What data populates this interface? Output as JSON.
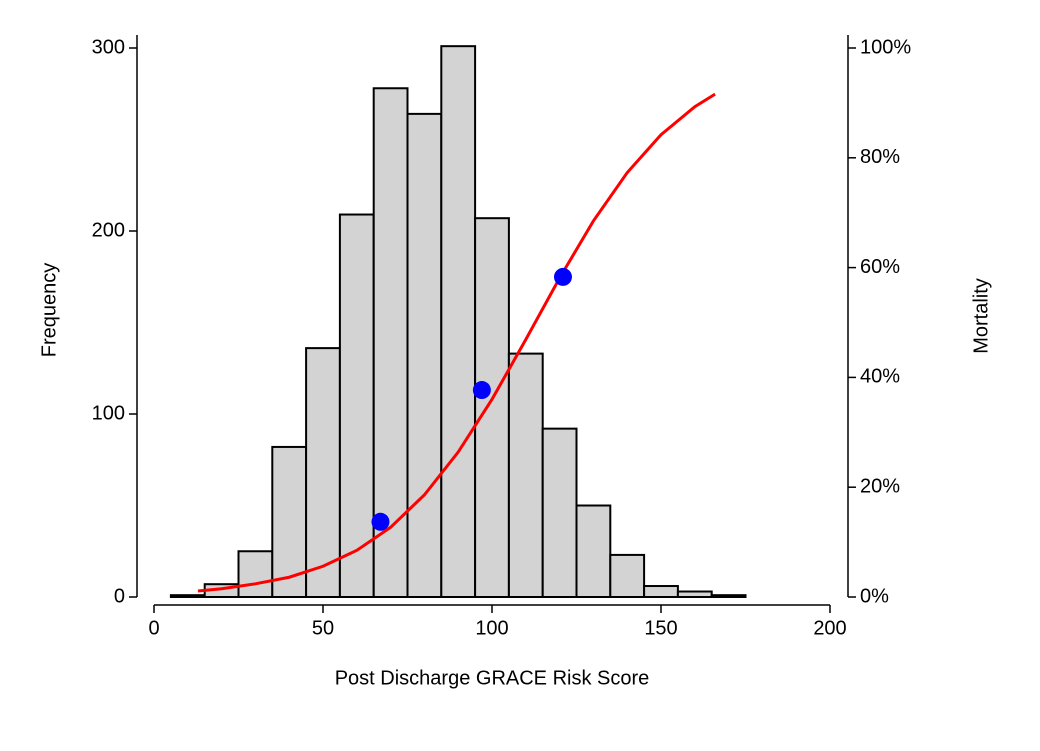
{
  "chart_data": {
    "type": "histogram",
    "bins": [
      5,
      15,
      25,
      35,
      45,
      55,
      65,
      75,
      85,
      95,
      105,
      115,
      125,
      135,
      145,
      155,
      165,
      175
    ],
    "values": [
      1,
      7,
      25,
      82,
      136,
      209,
      278,
      264,
      301,
      207,
      133,
      92,
      50,
      23,
      6,
      3,
      1
    ],
    "color": "#d3d3d3",
    "x_label": "Post Discharge GRACE Risk Score",
    "y_label": "Frequency",
    "y2_label": "Mortality",
    "xlim": [
      0,
      200
    ],
    "xticks": [
      0,
      50,
      100,
      150,
      200
    ],
    "ylim": [
      0,
      300
    ],
    "yticks": [
      0,
      100,
      200,
      300
    ],
    "y2lim": [
      0,
      100
    ],
    "y2ticks": [
      {
        "value": 0,
        "label": "0%"
      },
      {
        "value": 20,
        "label": "20%"
      },
      {
        "value": 40,
        "label": "40%"
      },
      {
        "value": 60,
        "label": "60%"
      },
      {
        "value": 80,
        "label": "80%"
      },
      {
        "value": 100,
        "label": "100%"
      }
    ],
    "series": [
      {
        "type": "line",
        "axis": "y2",
        "color": "#ff0000",
        "x": [
          13,
          20,
          30,
          40,
          50,
          60,
          70,
          80,
          90,
          100,
          110,
          120,
          130,
          140,
          150,
          160,
          166
        ],
        "values": [
          1.1,
          1.5,
          2.4,
          3.6,
          5.6,
          8.5,
          12.7,
          18.6,
          26.4,
          36.0,
          46.9,
          58.1,
          68.5,
          77.3,
          84.2,
          89.3,
          91.6
        ]
      },
      {
        "type": "scatter",
        "axis": "y2",
        "color": "#0000ff",
        "x": [
          67,
          97,
          121
        ],
        "values": [
          13.7,
          37.7,
          58.3
        ]
      }
    ]
  }
}
